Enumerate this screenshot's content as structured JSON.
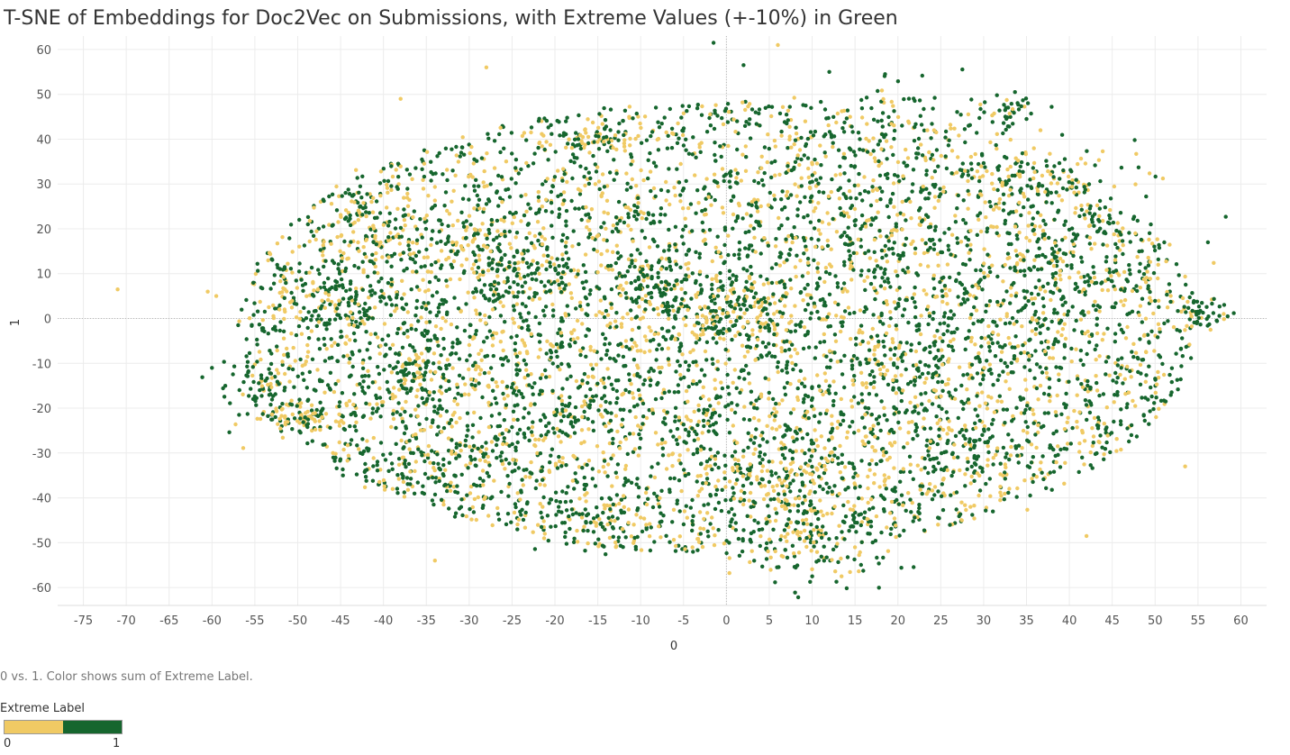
{
  "title": "T-SNE of Embeddings for Doc2Vec on Submissions, with Extreme Values (+-10%) in Green",
  "caption": "0 vs. 1.  Color shows sum of Extreme Label.",
  "legend": {
    "title": "Extreme Label",
    "min_label": "0",
    "max_label": "1",
    "colors": [
      "#f0ca64",
      "#16662e"
    ]
  },
  "chart_data": {
    "type": "scatter",
    "title": "T-SNE of Embeddings for Doc2Vec on Submissions, with Extreme Values (+-10%) in Green",
    "xlabel": "0",
    "ylabel": "1",
    "xlim": [
      -78,
      63
    ],
    "ylim": [
      -64,
      63
    ],
    "x_ticks": [
      -75,
      -70,
      -65,
      -60,
      -55,
      -50,
      -45,
      -40,
      -35,
      -30,
      -25,
      -20,
      -15,
      -10,
      -5,
      0,
      5,
      10,
      15,
      20,
      25,
      30,
      35,
      40,
      45,
      50,
      55,
      60
    ],
    "y_ticks": [
      -60,
      -50,
      -40,
      -30,
      -20,
      -10,
      0,
      10,
      20,
      30,
      40,
      50,
      60
    ],
    "grid": true,
    "zero_lines": true,
    "legend_position": "bottom-left",
    "series": [
      {
        "name": "0",
        "color": "#f0ca64",
        "points": [
          [
            -71,
            6.5
          ],
          [
            -60.5,
            6
          ],
          [
            -59.5,
            5
          ],
          [
            -34,
            -54
          ],
          [
            -28,
            56
          ],
          [
            6,
            61
          ],
          [
            53.5,
            -33
          ],
          [
            42,
            -48.5
          ],
          [
            -38,
            49
          ],
          [
            58,
            1
          ]
        ]
      },
      {
        "name": "1",
        "color": "#16662e",
        "points": [
          [
            -1.5,
            61.5
          ],
          [
            2,
            56.5
          ],
          [
            12,
            55
          ],
          [
            18.5,
            54.5
          ],
          [
            -60,
            -11
          ],
          [
            -3,
            -48
          ],
          [
            10,
            -57.5
          ],
          [
            55,
            1.5
          ],
          [
            35,
            44.5
          ],
          [
            -14,
            40.5
          ]
        ]
      }
    ],
    "clusters": [
      {
        "x": 1,
        "y": 1,
        "sx": 5,
        "sy": 4,
        "n": 180,
        "p": 0.55
      },
      {
        "x": -15,
        "y": 40,
        "sx": 2,
        "sy": 1.2,
        "n": 50,
        "p": 0.5
      },
      {
        "x": -50,
        "y": -22,
        "sx": 3,
        "sy": 2,
        "n": 80,
        "p": 0.4
      },
      {
        "x": -54,
        "y": -15,
        "sx": 2,
        "sy": 4,
        "n": 70,
        "p": 0.8
      },
      {
        "x": -45,
        "y": 3,
        "sx": 4,
        "sy": 4,
        "n": 120,
        "p": 0.7
      },
      {
        "x": -37,
        "y": -13,
        "sx": 3,
        "sy": 4,
        "n": 90,
        "p": 0.7
      },
      {
        "x": -25,
        "y": 10,
        "sx": 4,
        "sy": 4,
        "n": 90,
        "p": 0.75
      },
      {
        "x": -30,
        "y": 17,
        "sx": 4,
        "sy": 3,
        "n": 60,
        "p": 0.45
      },
      {
        "x": -7,
        "y": 8,
        "sx": 4,
        "sy": 3,
        "n": 90,
        "p": 0.8
      },
      {
        "x": 5,
        "y": -35,
        "sx": 6,
        "sy": 5,
        "n": 140,
        "p": 0.55
      },
      {
        "x": 10,
        "y": -50,
        "sx": 5,
        "sy": 5,
        "n": 130,
        "p": 0.65
      },
      {
        "x": -15,
        "y": -45,
        "sx": 4,
        "sy": 3,
        "n": 70,
        "p": 0.7
      },
      {
        "x": 35,
        "y": 32,
        "sx": 6,
        "sy": 4,
        "n": 110,
        "p": 0.5
      },
      {
        "x": 42,
        "y": 12,
        "sx": 6,
        "sy": 8,
        "n": 130,
        "p": 0.75
      },
      {
        "x": 55,
        "y": 1,
        "sx": 2,
        "sy": 2,
        "n": 40,
        "p": 0.8
      },
      {
        "x": 33,
        "y": 46,
        "sx": 2,
        "sy": 2,
        "n": 40,
        "p": 0.8
      },
      {
        "x": 28,
        "y": -28,
        "sx": 6,
        "sy": 5,
        "n": 90,
        "p": 0.65
      },
      {
        "x": 20,
        "y": -15,
        "sx": 6,
        "sy": 6,
        "n": 110,
        "p": 0.7
      },
      {
        "x": 30,
        "y": 0,
        "sx": 6,
        "sy": 6,
        "n": 110,
        "p": 0.7
      },
      {
        "x": 15,
        "y": 20,
        "sx": 6,
        "sy": 6,
        "n": 110,
        "p": 0.7
      },
      {
        "x": -30,
        "y": -30,
        "sx": 4,
        "sy": 4,
        "n": 70,
        "p": 0.8
      },
      {
        "x": -20,
        "y": -15,
        "sx": 8,
        "sy": 8,
        "n": 160,
        "p": 0.65
      },
      {
        "x": -40,
        "y": -35,
        "sx": 3,
        "sy": 2,
        "n": 25,
        "p": 0.5
      },
      {
        "x": 20,
        "y": 45,
        "sx": 6,
        "sy": 4,
        "n": 70,
        "p": 0.7
      },
      {
        "x": -42,
        "y": 17,
        "sx": 3,
        "sy": 3,
        "n": 40,
        "p": 0.3
      },
      {
        "x": -40,
        "y": 28,
        "sx": 3,
        "sy": 3,
        "n": 30,
        "p": 0.6
      }
    ],
    "background_points": 5200,
    "background_share_extreme": 0.62
  }
}
